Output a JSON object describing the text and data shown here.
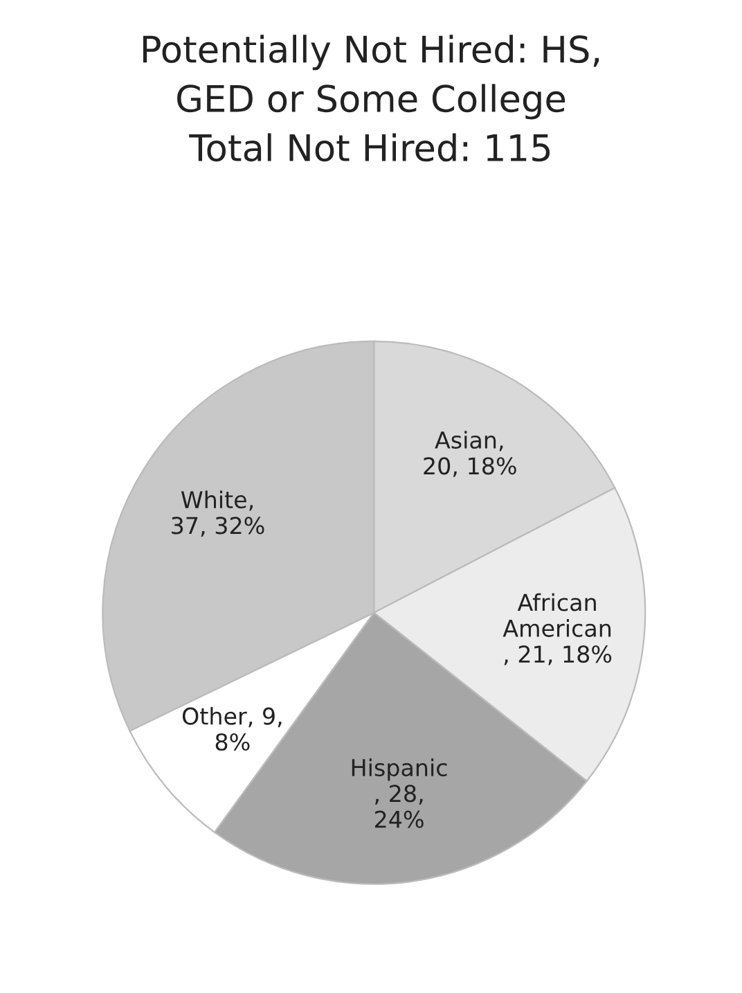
{
  "chart_data": {
    "type": "pie",
    "title": "Potentially Not Hired: HS,\nGED or Some College\nTotal Not Hired: 115",
    "categories": [
      "Asian",
      "African\nAmerican",
      "Hispanic",
      "Other",
      "White"
    ],
    "values": [
      20,
      21,
      28,
      9,
      37
    ],
    "colors": [
      "#d9d9d9",
      "#ececec",
      "#a6a6a6",
      "#ffffff",
      "#c8c8c8"
    ],
    "value_labels": [
      ",\n20, 18%",
      "\n, 21, 18%",
      "\n, 28,\n24%",
      ", 9,\n8%",
      ",\n37, 32%"
    ]
  }
}
